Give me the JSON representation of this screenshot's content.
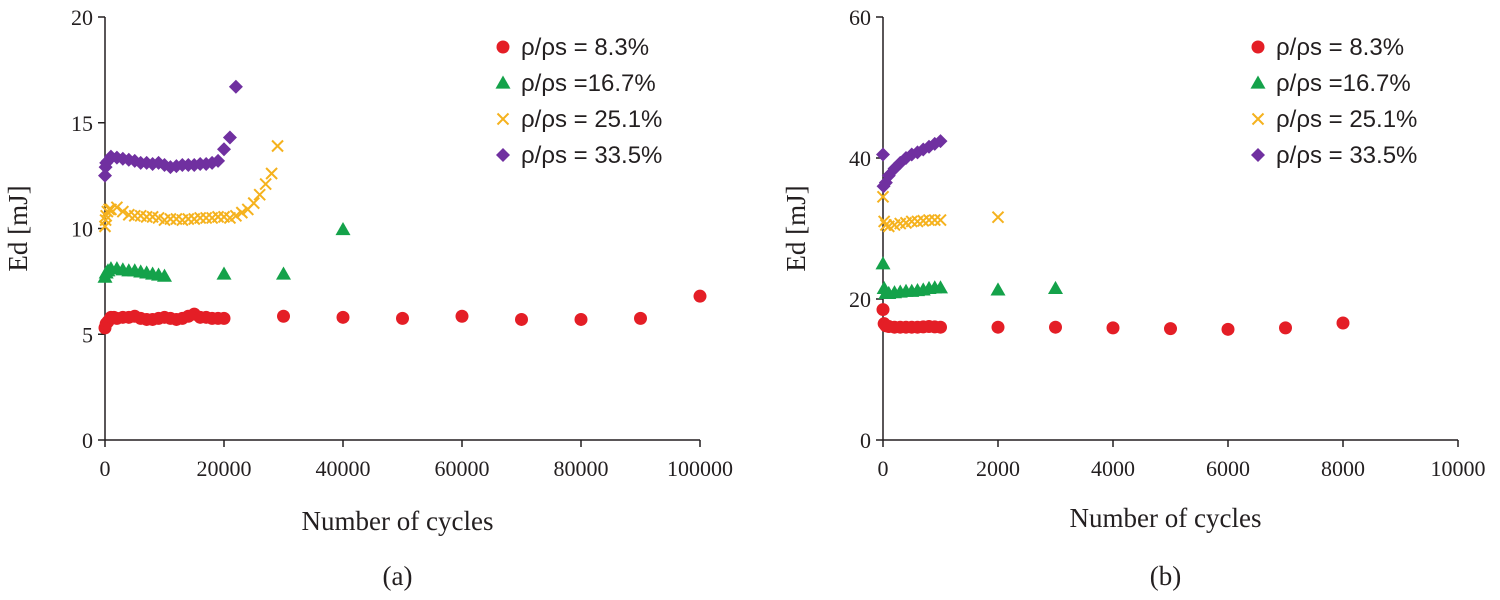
{
  "chart_data": [
    {
      "type": "scatter",
      "panel_label": "(a)",
      "xlabel": "Number of cycles",
      "ylabel": "Ed [mJ]",
      "xlim": [
        0,
        100000
      ],
      "ylim": [
        0,
        20
      ],
      "xticks": [
        0,
        20000,
        40000,
        60000,
        80000,
        100000
      ],
      "yticks": [
        0,
        5,
        10,
        15,
        20
      ],
      "x_tick_labels": [
        "0",
        "20000",
        "40000",
        "60000",
        "80000",
        "100000"
      ],
      "y_tick_labels": [
        "0",
        "5",
        "10",
        "15",
        "20"
      ],
      "legend_position": "top-right",
      "grid": false,
      "series": [
        {
          "name": "ρ/ρs = 8.3%",
          "marker": "circle",
          "color": "#e41e26",
          "points": [
            [
              0,
              5.3
            ],
            [
              200,
              5.5
            ],
            [
              500,
              5.6
            ],
            [
              1000,
              5.8
            ],
            [
              1500,
              5.8
            ],
            [
              2000,
              5.75
            ],
            [
              3000,
              5.8
            ],
            [
              4000,
              5.8
            ],
            [
              5000,
              5.85
            ],
            [
              6000,
              5.75
            ],
            [
              7000,
              5.7
            ],
            [
              8000,
              5.7
            ],
            [
              9000,
              5.75
            ],
            [
              10000,
              5.8
            ],
            [
              11000,
              5.75
            ],
            [
              12000,
              5.7
            ],
            [
              13000,
              5.75
            ],
            [
              14000,
              5.85
            ],
            [
              15000,
              5.95
            ],
            [
              16000,
              5.8
            ],
            [
              17000,
              5.8
            ],
            [
              18000,
              5.75
            ],
            [
              19000,
              5.75
            ],
            [
              20000,
              5.75
            ],
            [
              30000,
              5.85
            ],
            [
              40000,
              5.8
            ],
            [
              50000,
              5.75
            ],
            [
              60000,
              5.85
            ],
            [
              70000,
              5.7
            ],
            [
              80000,
              5.7
            ],
            [
              90000,
              5.75
            ],
            [
              100000,
              6.8
            ]
          ]
        },
        {
          "name": "ρ/ρs =16.7%",
          "marker": "triangle",
          "color": "#14a24a",
          "points": [
            [
              0,
              7.7
            ],
            [
              200,
              7.9
            ],
            [
              500,
              8.0
            ],
            [
              1000,
              8.1
            ],
            [
              2000,
              8.1
            ],
            [
              3000,
              8.05
            ],
            [
              4000,
              8.0
            ],
            [
              5000,
              8.0
            ],
            [
              6000,
              7.95
            ],
            [
              7000,
              7.9
            ],
            [
              8000,
              7.85
            ],
            [
              9000,
              7.8
            ],
            [
              10000,
              7.75
            ],
            [
              20000,
              7.85
            ],
            [
              30000,
              7.85
            ],
            [
              40000,
              9.95
            ]
          ]
        },
        {
          "name": "ρ/ρs = 25.1%",
          "marker": "x",
          "color": "#f5b21e",
          "points": [
            [
              0,
              10.1
            ],
            [
              100,
              10.4
            ],
            [
              200,
              10.6
            ],
            [
              400,
              10.8
            ],
            [
              700,
              10.9
            ],
            [
              1000,
              10.9
            ],
            [
              2000,
              11.0
            ],
            [
              3000,
              10.8
            ],
            [
              4000,
              10.65
            ],
            [
              5000,
              10.6
            ],
            [
              6000,
              10.6
            ],
            [
              7000,
              10.55
            ],
            [
              8000,
              10.55
            ],
            [
              9000,
              10.5
            ],
            [
              10000,
              10.4
            ],
            [
              11000,
              10.45
            ],
            [
              12000,
              10.45
            ],
            [
              13000,
              10.4
            ],
            [
              14000,
              10.45
            ],
            [
              15000,
              10.45
            ],
            [
              16000,
              10.5
            ],
            [
              17000,
              10.5
            ],
            [
              18000,
              10.5
            ],
            [
              19000,
              10.55
            ],
            [
              20000,
              10.55
            ],
            [
              21000,
              10.5
            ],
            [
              22000,
              10.6
            ],
            [
              23000,
              10.75
            ],
            [
              24000,
              10.9
            ],
            [
              25000,
              11.2
            ],
            [
              26000,
              11.6
            ],
            [
              27000,
              12.1
            ],
            [
              28000,
              12.6
            ],
            [
              29000,
              13.9
            ]
          ]
        },
        {
          "name": "ρ/ρs = 33.5%",
          "marker": "diamond",
          "color": "#7030a0",
          "points": [
            [
              0,
              12.5
            ],
            [
              100,
              12.9
            ],
            [
              200,
              13.1
            ],
            [
              500,
              13.2
            ],
            [
              1000,
              13.4
            ],
            [
              2000,
              13.35
            ],
            [
              3000,
              13.3
            ],
            [
              4000,
              13.25
            ],
            [
              5000,
              13.2
            ],
            [
              6000,
              13.1
            ],
            [
              7000,
              13.1
            ],
            [
              8000,
              13.05
            ],
            [
              9000,
              13.1
            ],
            [
              10000,
              13.0
            ],
            [
              11000,
              12.9
            ],
            [
              12000,
              12.95
            ],
            [
              13000,
              13.0
            ],
            [
              14000,
              13.0
            ],
            [
              15000,
              13.0
            ],
            [
              16000,
              13.05
            ],
            [
              17000,
              13.05
            ],
            [
              18000,
              13.1
            ],
            [
              19000,
              13.2
            ],
            [
              20000,
              13.75
            ],
            [
              21000,
              14.3
            ],
            [
              22000,
              16.7
            ]
          ]
        }
      ]
    },
    {
      "type": "scatter",
      "panel_label": "(b)",
      "xlabel": "Number of cycles",
      "ylabel": "Ed [mJ]",
      "xlim": [
        0,
        10000
      ],
      "ylim": [
        0,
        60
      ],
      "xticks": [
        0,
        2000,
        4000,
        6000,
        8000,
        10000
      ],
      "yticks": [
        0,
        20,
        40,
        60
      ],
      "x_tick_labels": [
        "0",
        "2000",
        "4000",
        "6000",
        "8000",
        "10000"
      ],
      "y_tick_labels": [
        "0",
        "20",
        "40",
        "60"
      ],
      "legend_position": "top-right",
      "grid": false,
      "series": [
        {
          "name": "ρ/ρs = 8.3%",
          "marker": "circle",
          "color": "#e41e26",
          "points": [
            [
              0,
              18.5
            ],
            [
              20,
              16.5
            ],
            [
              50,
              16.2
            ],
            [
              100,
              16.1
            ],
            [
              200,
              16.0
            ],
            [
              300,
              16.0
            ],
            [
              400,
              16.0
            ],
            [
              500,
              16.0
            ],
            [
              600,
              16.0
            ],
            [
              700,
              16.05
            ],
            [
              800,
              16.1
            ],
            [
              900,
              16.05
            ],
            [
              1000,
              16.0
            ],
            [
              2000,
              16.0
            ],
            [
              3000,
              16.0
            ],
            [
              4000,
              15.9
            ],
            [
              5000,
              15.8
            ],
            [
              6000,
              15.7
            ],
            [
              7000,
              15.9
            ],
            [
              8000,
              16.6
            ]
          ]
        },
        {
          "name": "ρ/ρs =16.7%",
          "marker": "triangle",
          "color": "#14a24a",
          "points": [
            [
              0,
              25.0
            ],
            [
              20,
              21.5
            ],
            [
              50,
              20.8
            ],
            [
              100,
              20.8
            ],
            [
              200,
              20.9
            ],
            [
              300,
              21.0
            ],
            [
              400,
              21.1
            ],
            [
              500,
              21.1
            ],
            [
              600,
              21.2
            ],
            [
              700,
              21.3
            ],
            [
              800,
              21.5
            ],
            [
              900,
              21.6
            ],
            [
              1000,
              21.6
            ],
            [
              2000,
              21.3
            ],
            [
              3000,
              21.5
            ]
          ]
        },
        {
          "name": "ρ/ρs = 25.1%",
          "marker": "x",
          "color": "#f5b21e",
          "points": [
            [
              0,
              34.5
            ],
            [
              20,
              31.0
            ],
            [
              50,
              30.5
            ],
            [
              100,
              30.3
            ],
            [
              200,
              30.5
            ],
            [
              300,
              30.7
            ],
            [
              400,
              30.8
            ],
            [
              500,
              31.0
            ],
            [
              600,
              31.0
            ],
            [
              700,
              31.1
            ],
            [
              800,
              31.2
            ],
            [
              900,
              31.2
            ],
            [
              1000,
              31.2
            ],
            [
              2000,
              31.6
            ]
          ]
        },
        {
          "name": "ρ/ρs = 33.5%",
          "marker": "diamond",
          "color": "#7030a0",
          "points": [
            [
              0,
              40.5
            ],
            [
              10,
              36.0
            ],
            [
              50,
              36.5
            ],
            [
              100,
              37.5
            ],
            [
              200,
              38.5
            ],
            [
              300,
              39.3
            ],
            [
              400,
              40.0
            ],
            [
              500,
              40.5
            ],
            [
              600,
              40.8
            ],
            [
              700,
              41.2
            ],
            [
              800,
              41.6
            ],
            [
              900,
              42.0
            ],
            [
              1000,
              42.4
            ]
          ]
        }
      ]
    }
  ]
}
